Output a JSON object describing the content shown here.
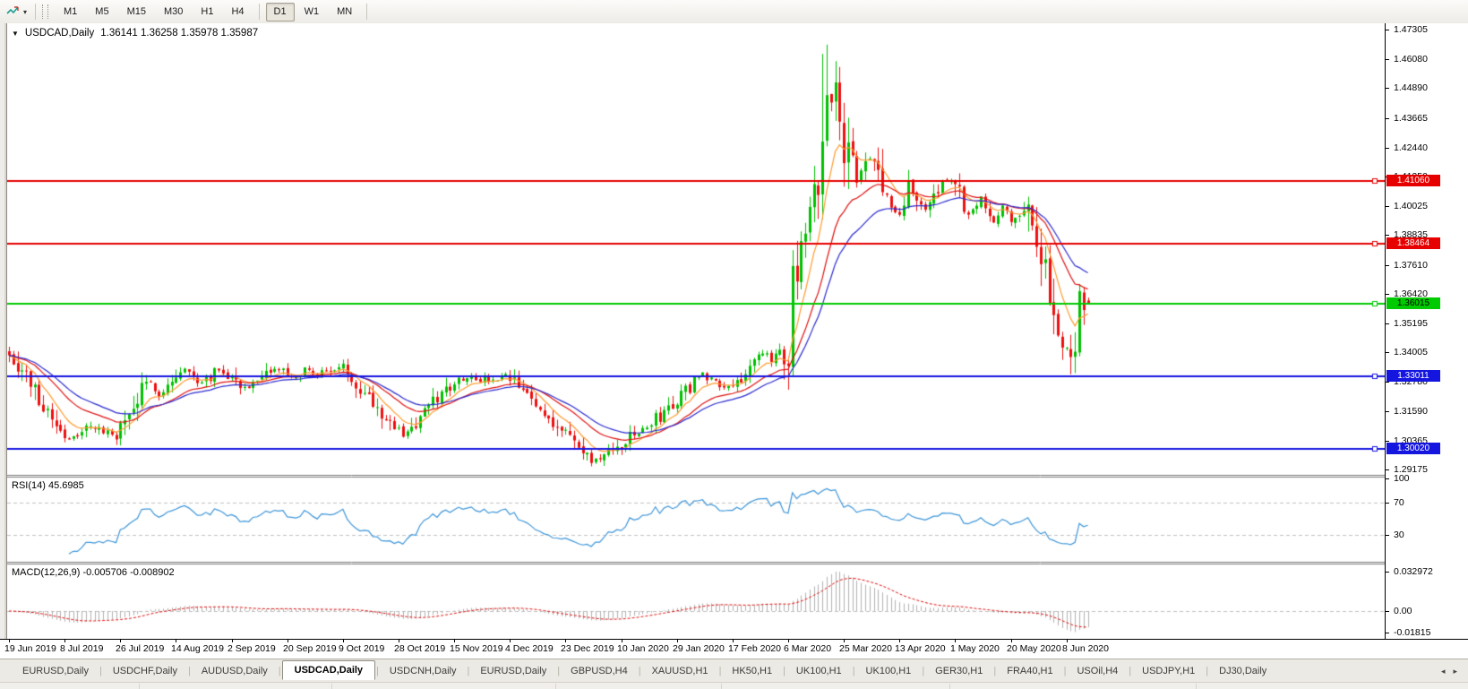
{
  "ui": {
    "toolbar": {
      "timeframes": [
        "M1",
        "M5",
        "M15",
        "M30",
        "H1",
        "H4",
        "D1",
        "W1",
        "MN"
      ],
      "active_timeframe": "D1",
      "dropdown_caret": "▾"
    },
    "title": {
      "collapse_glyph": "▼",
      "symbol": "USDCAD,Daily",
      "ohlc": "1.36141 1.36258 1.35978 1.35987"
    },
    "rsi_label": "RSI(14) 45.6985",
    "macd_label": "MACD(12,26,9) -0.005706 -0.008902",
    "tabs": {
      "items": [
        "EURUSD,Daily",
        "USDCHF,Daily",
        "AUDUSD,Daily",
        "USDCAD,Daily",
        "USDCNH,Daily",
        "EURUSD,Daily",
        "GBPUSD,H4",
        "XAUUSD,H1",
        "HK50,H1",
        "UK100,H1",
        "UK100,H1",
        "GER30,H1",
        "FRA40,H1",
        "USOil,H4",
        "USDJPY,H1",
        "DJ30,Daily"
      ],
      "active_index": 3,
      "nav_left": "◂",
      "nav_right": "▸"
    }
  },
  "colors": {
    "bull": "#00c000",
    "bear": "#ee0f0f",
    "ma_fast": "#ff9b2f",
    "ma_mid": "#e01010",
    "ma_slow": "#2b2bd0",
    "rsi_line": "#3e96d9",
    "indicator_level_dash": "#c2c2c2",
    "macd_hist": "#b2b2b2",
    "macd_signal": "#e01010",
    "axis_text": "#000000"
  },
  "chart_data": {
    "type": "candlestick",
    "symbol": "USDCAD",
    "timeframe": "D1",
    "last_ohlc": {
      "open": 1.36141,
      "high": 1.36258,
      "low": 1.35978,
      "close": 1.35987
    },
    "y_axis_ticks": [
      1.47305,
      1.4608,
      1.4489,
      1.43665,
      1.4244,
      1.4125,
      1.40025,
      1.38835,
      1.3761,
      1.3642,
      1.35195,
      1.34005,
      1.3278,
      1.3159,
      1.30365,
      1.29175
    ],
    "y_range": {
      "top": 1.4756,
      "bottom": 1.2903
    },
    "x_tick_labels": [
      "19 Jun 2019",
      "8 Jul 2019",
      "26 Jul 2019",
      "14 Aug 2019",
      "2 Sep 2019",
      "20 Sep 2019",
      "9 Oct 2019",
      "28 Oct 2019",
      "15 Nov 2019",
      "4 Dec 2019",
      "23 Dec 2019",
      "10 Jan 2020",
      "29 Jan 2020",
      "17 Feb 2020",
      "6 Mar 2020",
      "25 Mar 2020",
      "13 Apr 2020",
      "1 May 2020",
      "20 May 2020",
      "8 Jun 2020"
    ],
    "bars_per_x_tick": 13,
    "bar_count": 253,
    "close_anchors": [
      [
        0,
        1.34
      ],
      [
        3,
        1.333
      ],
      [
        6,
        1.324
      ],
      [
        9,
        1.316
      ],
      [
        13,
        1.306
      ],
      [
        16,
        1.3045
      ],
      [
        19,
        1.3105
      ],
      [
        22,
        1.307
      ],
      [
        25,
        1.306
      ],
      [
        28,
        1.314
      ],
      [
        31,
        1.324
      ],
      [
        33,
        1.3275
      ],
      [
        35,
        1.323
      ],
      [
        39,
        1.33
      ],
      [
        41,
        1.333
      ],
      [
        44,
        1.328
      ],
      [
        47,
        1.3305
      ],
      [
        49,
        1.3335
      ],
      [
        52,
        1.33
      ],
      [
        55,
        1.3255
      ],
      [
        58,
        1.327
      ],
      [
        61,
        1.3315
      ],
      [
        63,
        1.3335
      ],
      [
        66,
        1.329
      ],
      [
        69,
        1.3325
      ],
      [
        72,
        1.331
      ],
      [
        75,
        1.333
      ],
      [
        78,
        1.3335
      ],
      [
        81,
        1.328
      ],
      [
        84,
        1.322
      ],
      [
        87,
        1.316
      ],
      [
        90,
        1.309
      ],
      [
        92,
        1.306
      ],
      [
        95,
        1.3105
      ],
      [
        98,
        1.317
      ],
      [
        101,
        1.323
      ],
      [
        104,
        1.328
      ],
      [
        107,
        1.3305
      ],
      [
        110,
        1.329
      ],
      [
        113,
        1.328
      ],
      [
        116,
        1.33
      ],
      [
        119,
        1.326
      ],
      [
        122,
        1.32
      ],
      [
        125,
        1.315
      ],
      [
        128,
        1.31
      ],
      [
        131,
        1.3055
      ],
      [
        134,
        1.298
      ],
      [
        136,
        1.2955
      ],
      [
        139,
        1.297
      ],
      [
        142,
        1.301
      ],
      [
        145,
        1.305
      ],
      [
        148,
        1.308
      ],
      [
        151,
        1.3125
      ],
      [
        154,
        1.317
      ],
      [
        157,
        1.3215
      ],
      [
        160,
        1.329
      ],
      [
        162,
        1.331
      ],
      [
        165,
        1.328
      ],
      [
        168,
        1.326
      ],
      [
        171,
        1.33
      ],
      [
        174,
        1.335
      ],
      [
        176,
        1.339
      ],
      [
        178,
        1.337
      ],
      [
        180,
        1.342
      ],
      [
        182,
        1.3425
      ],
      [
        183,
        1.366
      ],
      [
        185,
        1.379
      ],
      [
        187,
        1.392
      ],
      [
        189,
        1.41
      ],
      [
        190,
        1.428
      ],
      [
        191,
        1.45
      ],
      [
        192,
        1.443
      ],
      [
        193,
        1.448
      ],
      [
        195,
        1.427
      ],
      [
        197,
        1.418
      ],
      [
        198,
        1.409
      ],
      [
        200,
        1.42
      ],
      [
        202,
        1.418
      ],
      [
        204,
        1.409
      ],
      [
        206,
        1.398
      ],
      [
        208,
        1.396
      ],
      [
        210,
        1.408
      ],
      [
        212,
        1.405
      ],
      [
        214,
        1.398
      ],
      [
        217,
        1.409
      ],
      [
        219,
        1.411
      ],
      [
        221,
        1.409
      ],
      [
        224,
        1.396
      ],
      [
        227,
        1.405
      ],
      [
        230,
        1.394
      ],
      [
        232,
        1.401
      ],
      [
        234,
        1.393
      ],
      [
        236,
        1.399
      ],
      [
        238,
        1.3995
      ],
      [
        240,
        1.379
      ],
      [
        242,
        1.378
      ],
      [
        243,
        1.358
      ],
      [
        245,
        1.349
      ],
      [
        247,
        1.339
      ],
      [
        249,
        1.342
      ],
      [
        250,
        1.362
      ],
      [
        252,
        1.35987
      ]
    ],
    "forced_bars": {
      "190": {
        "h": 1.463
      },
      "191": {
        "h": 1.4668
      },
      "193": {
        "h": 1.46
      },
      "249": {
        "l": 1.3315
      }
    },
    "noise_seed": 7,
    "overlays": [
      {
        "name": "ma-fast",
        "period": 8,
        "color_key": "ma_fast"
      },
      {
        "name": "ma-mid",
        "period": 19,
        "color_key": "ma_mid"
      },
      {
        "name": "ma-slow",
        "period": 28,
        "color_key": "ma_slow"
      }
    ],
    "levels": [
      {
        "price": 1.4106,
        "color": "#e60000",
        "text_color": "#ffffff"
      },
      {
        "price": 1.38464,
        "color": "#e60000",
        "text_color": "#ffffff"
      },
      {
        "price": 1.36015,
        "color": "#00ca00",
        "text_color": "#000000"
      },
      {
        "price": 1.33011,
        "color": "#1515e0",
        "text_color": "#ffffff"
      },
      {
        "price": 1.3002,
        "color": "#1515e0",
        "text_color": "#ffffff"
      }
    ],
    "indicators": {
      "rsi": {
        "period": 14,
        "current": 45.6985,
        "range": [
          0,
          100
        ],
        "level_lines": [
          70,
          30
        ],
        "axis_ticks": [
          100,
          70,
          30
        ]
      },
      "macd": {
        "fast": 12,
        "slow": 26,
        "signal": 9,
        "current_macd": -0.005706,
        "current_signal": -0.008902,
        "axis_ticks": [
          [
            "0.032972",
            0.032972
          ],
          [
            "0.00",
            0
          ],
          [
            "-0.01815",
            -0.01815
          ]
        ],
        "display_max": 0.033
      }
    }
  }
}
